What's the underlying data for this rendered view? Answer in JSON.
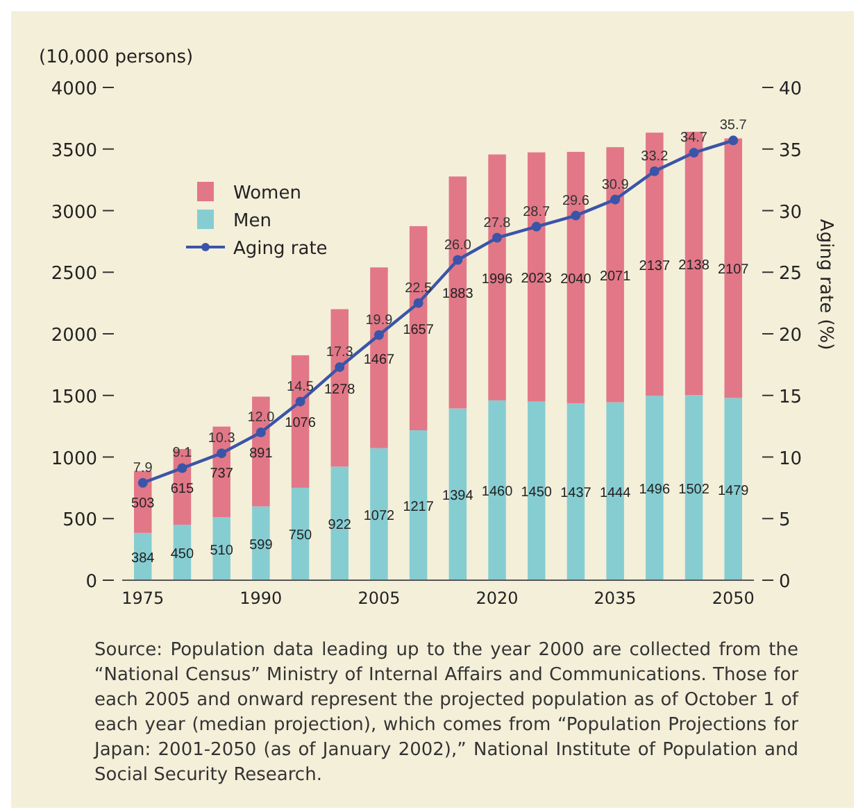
{
  "chart_data": {
    "type": "bar",
    "stacked": true,
    "ylabel": "(10,000 persons)",
    "y2label": "Aging rate (%)",
    "categories": [
      "1975",
      null,
      null,
      "1990",
      null,
      null,
      "2005",
      null,
      null,
      "2020",
      null,
      null,
      "2035",
      null,
      null,
      "2050"
    ],
    "series": [
      {
        "name": "Men",
        "color": "#86cdd2",
        "values": [
          384,
          450,
          510,
          599,
          750,
          922,
          1072,
          1217,
          1394,
          1460,
          1450,
          1437,
          1444,
          1496,
          1502,
          1479
        ]
      },
      {
        "name": "Women",
        "color": "#e27787",
        "values": [
          503,
          615,
          737,
          891,
          1076,
          1278,
          1467,
          1657,
          1883,
          1996,
          2023,
          2040,
          2071,
          2137,
          2138,
          2107
        ]
      },
      {
        "name": "Aging rate",
        "type": "line",
        "axis": "y2",
        "color": "#3a55a8",
        "marker": "circle",
        "values": [
          7.9,
          9.1,
          10.3,
          12.0,
          14.5,
          17.3,
          19.9,
          22.5,
          26.0,
          27.8,
          28.7,
          29.6,
          30.9,
          33.2,
          34.7,
          35.7
        ],
        "value_labels": [
          "7.9",
          "9.1",
          "10.3",
          "12.0",
          "14.5",
          "17.3",
          "19.9",
          "22.5",
          "26.0",
          "27.8",
          "28.7",
          "29.6",
          "30.9",
          "33.2",
          "34.7",
          "35.7"
        ]
      }
    ],
    "ylim": [
      0,
      4000
    ],
    "yticks": [
      0,
      500,
      1000,
      1500,
      2000,
      2500,
      3000,
      3500,
      4000
    ],
    "y2lim": [
      0,
      40
    ],
    "y2ticks": [
      0,
      5,
      10,
      15,
      20,
      25,
      30,
      35,
      40
    ],
    "data_labels": true,
    "legend": "top left",
    "grid": false,
    "annotations": [
      "Source: Population data leading up to the year 2000 are collected from the “National Census” Ministry of Internal Affairs and Communications. Those for each 2005 and onward represent the projected population as of October 1 of each year (median projection), which comes from “Population Projections for Japan: 2001-2050 (as of January 2002),” National Institute of Population and Social Security Research."
    ]
  }
}
